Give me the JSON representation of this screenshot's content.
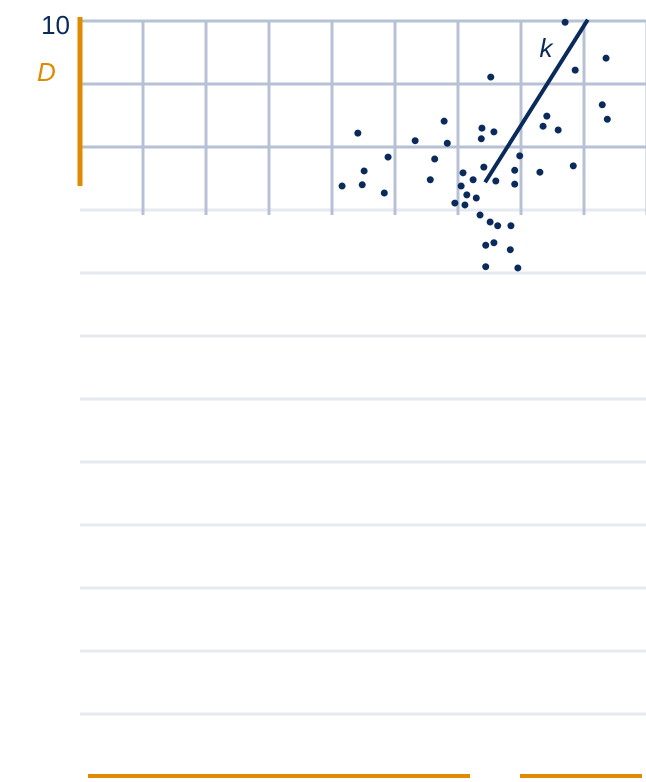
{
  "chart_data": {
    "type": "scatter",
    "y_label": "D",
    "color": "#0b2a5c",
    "axis_color": "#e08a00",
    "xlim": [
      0,
      9
    ],
    "ylim": [
      -2,
      10
    ],
    "yticks": [
      10
    ],
    "xgrid": [
      1,
      2,
      3,
      4,
      5,
      6,
      7,
      8,
      9
    ],
    "ygrid": [
      9,
      8,
      7,
      6,
      5,
      4,
      3,
      2,
      1,
      0,
      -1
    ],
    "x": [
      7.7,
      8.35,
      7.86,
      6.52,
      8.29,
      8.37,
      7.41,
      4.41,
      5.78,
      6.38,
      6.57,
      7.35,
      7.59,
      5.32,
      5.83,
      6.37,
      4.89,
      5.63,
      6.98,
      4.51,
      4.16,
      4.48,
      4.83,
      5.56,
      6.08,
      6.24,
      6.41,
      6.6,
      6.9,
      6.9,
      7.3,
      7.83,
      6.05,
      6.14,
      5.95,
      6.29,
      6.11,
      6.35,
      6.51,
      6.63,
      6.84,
      6.44,
      6.57,
      6.83,
      6.44,
      6.95
    ],
    "values": [
      9.98,
      9.41,
      9.22,
      9.11,
      8.67,
      8.44,
      8.49,
      8.22,
      8.41,
      8.3,
      8.24,
      8.33,
      8.27,
      8.1,
      8.06,
      8.13,
      7.84,
      7.81,
      7.86,
      7.62,
      7.38,
      7.4,
      7.27,
      7.48,
      7.59,
      7.48,
      7.68,
      7.46,
      7.63,
      7.41,
      7.6,
      7.7,
      7.38,
      7.24,
      7.11,
      7.19,
      7.08,
      6.92,
      6.81,
      6.75,
      6.75,
      6.44,
      6.48,
      6.37,
      6.1,
      6.08
    ],
    "trend_line": {
      "label": "k",
      "x": [
        6.43,
        8.06
      ],
      "values": [
        7.44,
        10.02
      ]
    }
  }
}
